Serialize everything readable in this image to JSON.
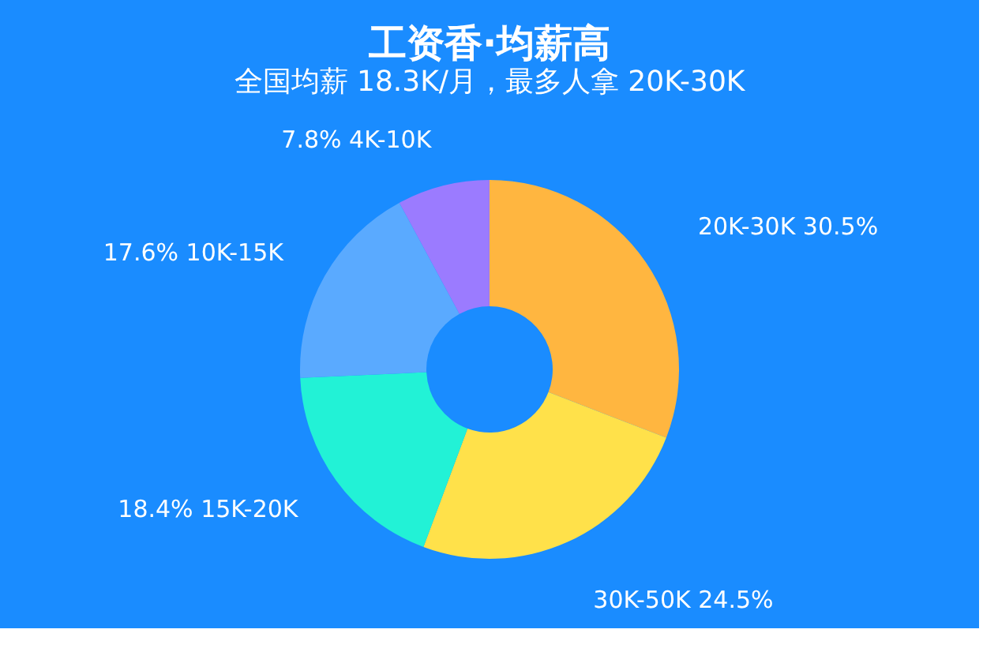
{
  "chart_data": {
    "type": "donut",
    "title": "工资香·均薪高",
    "subtitle": "全国均薪 18.3K/月，最多人拿 20K-30K",
    "categories": [
      "20K-30K",
      "30K-50K",
      "15K-20K",
      "10K-15K",
      "4K-10K"
    ],
    "values": [
      30.5,
      24.5,
      18.4,
      17.6,
      7.8
    ],
    "value_labels": [
      "30.5%",
      "24.5%",
      "18.4%",
      "17.6%",
      "7.8%"
    ],
    "colors": [
      "#ffb640",
      "#ffe14a",
      "#22f2d6",
      "#5aaaff",
      "#9b7bff"
    ],
    "legend": false
  }
}
